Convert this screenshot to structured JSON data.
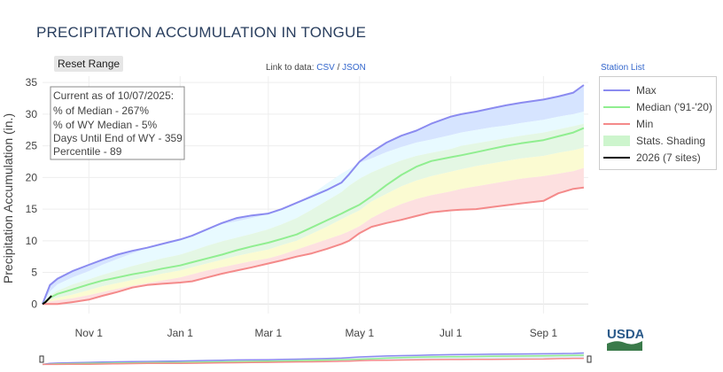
{
  "page": {
    "title": "PRECIPITATION ACCUMULATION IN TONGUE",
    "reset_label": "Reset Range",
    "links_prefix": "Link to data:",
    "csv_label": "CSV",
    "links_sep": "/",
    "json_label": "JSON",
    "station_list_label": "Station List",
    "logo_text": "USDA"
  },
  "info_box": {
    "lines": [
      "Current as of 10/07/2025:",
      "% of Median - 267%",
      "% of WY Median - 5%",
      "Days Until End of WY - 359",
      "Percentile - 89"
    ]
  },
  "legend": {
    "items": [
      {
        "label": "Max",
        "color": "#8b8bf0"
      },
      {
        "label": "Median ('91-'20)",
        "color": "#90ee90"
      },
      {
        "label": "Min",
        "color": "#f48a8a"
      },
      {
        "label": "Stats. Shading",
        "color": "#cdf5cd"
      },
      {
        "label": "2026 (7 sites)",
        "color": "#000000"
      }
    ]
  },
  "chart_data": {
    "type": "area",
    "title": "PRECIPITATION ACCUMULATION IN TONGUE",
    "ylabel": "Precipitation Accumulation (in.)",
    "xlabel": "",
    "x_unit": "days since Oct 1",
    "xlim": [
      0,
      365
    ],
    "ylim": [
      -1.5,
      36
    ],
    "y_ticks": [
      0,
      5,
      10,
      15,
      20,
      25,
      30,
      35
    ],
    "x_ticks": [
      {
        "label": "Nov 1",
        "x": 31
      },
      {
        "label": "Jan 1",
        "x": 92
      },
      {
        "label": "Mar 1",
        "x": 151
      },
      {
        "label": "May 1",
        "x": 212
      },
      {
        "label": "Jul 1",
        "x": 273
      },
      {
        "label": "Sep 1",
        "x": 335
      }
    ],
    "grid": true,
    "x": [
      0,
      5,
      10,
      20,
      31,
      40,
      50,
      60,
      70,
      80,
      92,
      100,
      110,
      120,
      130,
      140,
      151,
      160,
      170,
      180,
      190,
      200,
      205,
      212,
      220,
      230,
      240,
      250,
      260,
      273,
      280,
      290,
      300,
      310,
      320,
      335,
      345,
      355,
      362
    ],
    "bands": [
      {
        "name": "p90",
        "color": "#e8faff",
        "values": [
          0,
          2.0,
          3.1,
          4.2,
          5.2,
          6.2,
          7.1,
          8.0,
          8.8,
          9.6,
          10.3,
          10.9,
          11.8,
          12.6,
          13.1,
          13.6,
          14.2,
          15.0,
          16.0,
          17.3,
          19.0,
          20.6,
          21.3,
          22.3,
          23.0,
          24.0,
          24.8,
          25.5,
          26.0,
          26.7,
          27.1,
          27.5,
          27.9,
          28.2,
          28.6,
          29.1,
          29.6,
          30.0,
          30.4
        ]
      },
      {
        "name": "p70",
        "color": "#e4f7e4",
        "values": [
          0,
          1.4,
          2.1,
          3.1,
          3.9,
          4.6,
          5.3,
          6.0,
          6.6,
          7.2,
          7.8,
          8.4,
          9.2,
          9.9,
          10.5,
          11.1,
          11.8,
          12.6,
          13.6,
          14.9,
          16.3,
          17.7,
          18.7,
          19.8,
          20.8,
          21.8,
          22.7,
          23.4,
          23.9,
          24.5,
          25.0,
          25.4,
          25.8,
          26.2,
          26.6,
          27.1,
          27.6,
          28.1,
          28.5
        ]
      },
      {
        "name": "p30",
        "color": "#fbfbd2",
        "values": [
          0,
          0.7,
          1.0,
          1.5,
          2.2,
          2.8,
          3.3,
          3.8,
          4.3,
          4.8,
          5.3,
          5.8,
          6.4,
          7.0,
          7.6,
          8.1,
          8.6,
          9.3,
          10.0,
          11.1,
          12.2,
          13.4,
          14.0,
          14.8,
          16.2,
          17.4,
          18.6,
          19.5,
          20.2,
          20.9,
          21.3,
          21.8,
          22.2,
          22.6,
          23.0,
          23.4,
          23.9,
          24.3,
          24.7
        ]
      },
      {
        "name": "p10",
        "color": "#fde0e0",
        "values": [
          0,
          0.4,
          0.6,
          0.9,
          1.4,
          1.9,
          2.4,
          2.9,
          3.3,
          3.7,
          4.2,
          4.7,
          5.3,
          5.8,
          6.3,
          6.8,
          7.2,
          7.8,
          8.6,
          9.4,
          10.2,
          11.0,
          11.5,
          12.3,
          13.6,
          14.8,
          15.8,
          16.6,
          17.2,
          17.8,
          18.2,
          18.6,
          19.0,
          19.4,
          19.8,
          20.2,
          20.6,
          21.0,
          21.5
        ]
      }
    ],
    "series": [
      {
        "name": "Max",
        "color": "#8b8bf0",
        "values": [
          0,
          3.0,
          4.0,
          5.2,
          6.2,
          7.0,
          7.8,
          8.4,
          8.9,
          9.5,
          10.2,
          10.8,
          11.8,
          12.8,
          13.6,
          14.0,
          14.3,
          15.0,
          16.0,
          17.0,
          18.0,
          19.2,
          20.5,
          22.5,
          24.0,
          25.5,
          26.6,
          27.4,
          28.5,
          29.6,
          30.0,
          30.4,
          30.9,
          31.4,
          31.8,
          32.3,
          32.8,
          33.4,
          34.6
        ]
      },
      {
        "name": "Median ('91-'20)",
        "color": "#90ee90",
        "values": [
          0,
          1.0,
          1.6,
          2.3,
          3.1,
          3.7,
          4.2,
          4.7,
          5.1,
          5.6,
          6.1,
          6.6,
          7.2,
          7.8,
          8.5,
          9.1,
          9.7,
          10.3,
          11.0,
          12.1,
          13.2,
          14.3,
          14.9,
          15.7,
          17.0,
          18.8,
          20.4,
          21.7,
          22.6,
          23.2,
          23.5,
          24.0,
          24.5,
          25.0,
          25.4,
          25.9,
          26.5,
          27.1,
          27.8
        ]
      },
      {
        "name": "Min",
        "color": "#f48a8a",
        "values": [
          0,
          0,
          0,
          0.3,
          0.7,
          1.3,
          1.9,
          2.6,
          3.0,
          3.2,
          3.4,
          3.6,
          4.2,
          4.8,
          5.3,
          5.8,
          6.4,
          6.9,
          7.5,
          8.0,
          8.7,
          9.5,
          10.0,
          11.2,
          12.2,
          12.8,
          13.3,
          13.9,
          14.5,
          14.8,
          14.9,
          15.0,
          15.3,
          15.6,
          15.9,
          16.3,
          17.5,
          18.2,
          18.4
        ]
      }
    ],
    "current_year": {
      "name": "2026 (7 sites)",
      "color": "#000000",
      "x": [
        0,
        2,
        4,
        6
      ],
      "values": [
        0,
        0.3,
        0.8,
        1.3
      ]
    }
  }
}
